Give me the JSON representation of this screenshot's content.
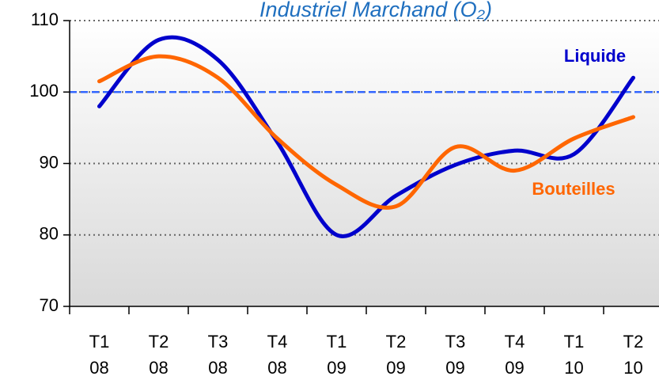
{
  "chart_data": {
    "type": "line",
    "title": "Industriel Marchand (O₂)",
    "categories": [
      [
        "T1",
        "08"
      ],
      [
        "T2",
        "08"
      ],
      [
        "T3",
        "08"
      ],
      [
        "T4",
        "08"
      ],
      [
        "T1",
        "09"
      ],
      [
        "T2",
        "09"
      ],
      [
        "T3",
        "09"
      ],
      [
        "T4",
        "09"
      ],
      [
        "T1",
        "10"
      ],
      [
        "T2",
        "10"
      ]
    ],
    "series": [
      {
        "name": "Liquide",
        "color": "#0000cc",
        "values": [
          98,
          107.3,
          104.5,
          93,
          80,
          85.5,
          89.8,
          91.8,
          91.3,
          102
        ]
      },
      {
        "name": "Bouteilles",
        "color": "#ff6600",
        "values": [
          101.5,
          105,
          102,
          93.5,
          87,
          84,
          92.3,
          89,
          93.5,
          96.5
        ]
      }
    ],
    "ylim": [
      70,
      110
    ],
    "yticks": [
      70,
      80,
      90,
      100,
      110
    ],
    "grid": true,
    "reference_line": 100
  }
}
